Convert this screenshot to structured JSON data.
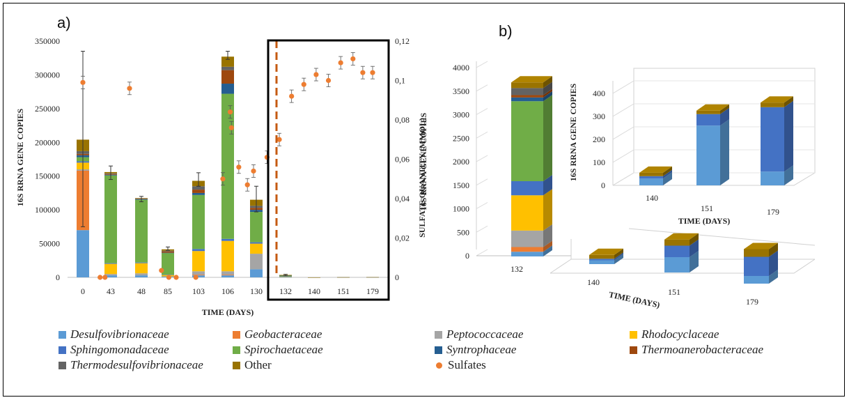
{
  "figure": {
    "panel_a_label": "a)",
    "panel_b_label": "b)"
  },
  "legend": {
    "items": [
      {
        "label": "Desulfovibrionaceae",
        "color": "#5b9bd5",
        "italic": true,
        "marker": "square"
      },
      {
        "label": "Geobacteraceae",
        "color": "#ed7d31",
        "italic": true,
        "marker": "square"
      },
      {
        "label": "Peptococcaceae",
        "color": "#a5a5a5",
        "italic": true,
        "marker": "square"
      },
      {
        "label": "Rhodocyclaceae",
        "color": "#ffc000",
        "italic": true,
        "marker": "square"
      },
      {
        "label": "Sphingomonadaceae",
        "color": "#4472c4",
        "italic": true,
        "marker": "square"
      },
      {
        "label": "Spirochaetaceae",
        "color": "#70ad47",
        "italic": true,
        "marker": "square"
      },
      {
        "label": "Syntrophaceae",
        "color": "#255e91",
        "italic": true,
        "marker": "square"
      },
      {
        "label": "Thermoanerobacteraceae",
        "color": "#9e480e",
        "italic": true,
        "marker": "square"
      },
      {
        "label": "Thermodesulfovibrionaceae",
        "color": "#636363",
        "italic": true,
        "marker": "square"
      },
      {
        "label": "Other",
        "color": "#997300",
        "italic": false,
        "marker": "square"
      },
      {
        "label": "Sulfates",
        "color": "#ed7d31",
        "italic": false,
        "marker": "dot"
      }
    ]
  },
  "chart_data": [
    {
      "panel": "a",
      "type": "bar",
      "stacked": true,
      "xlabel": "TIME (DAYS)",
      "ylabel": "16S RRNA GENE COPIES",
      "y2label": "SULFATE QUANTITY (MMOL)",
      "ylim": [
        0,
        350000
      ],
      "yticks": [
        "0",
        "50000",
        "100000",
        "150000",
        "200000",
        "250000",
        "300000",
        "350000"
      ],
      "y2lim": [
        0,
        0.12
      ],
      "y2ticks": [
        "0",
        "0,02",
        "0,04",
        "0,06",
        "0,08",
        "0,1",
        "0,12"
      ],
      "categories": [
        "0",
        "43",
        "48",
        "85",
        "103",
        "106",
        "130",
        "132",
        "140",
        "151",
        "179"
      ],
      "highlighted_categories": [
        "132",
        "140",
        "151",
        "179"
      ],
      "series": [
        {
          "name": "Desulfovibrionaceae",
          "values": [
            70000,
            3000,
            3000,
            1000,
            3000,
            3000,
            12000,
            300,
            0,
            0,
            0
          ]
        },
        {
          "name": "Geobacteraceae",
          "values": [
            88000,
            0,
            0,
            0,
            1000,
            1000,
            0,
            0,
            0,
            0,
            0
          ]
        },
        {
          "name": "Peptococcaceae",
          "values": [
            2000,
            2000,
            3000,
            500,
            5000,
            5000,
            23000,
            300,
            0,
            0,
            0
          ]
        },
        {
          "name": "Rhodocyclaceae",
          "values": [
            10000,
            15000,
            15000,
            2000,
            30000,
            45000,
            15000,
            600,
            0,
            0,
            0
          ]
        },
        {
          "name": "Sphingomonadaceae",
          "values": [
            2000,
            1000,
            1000,
            500,
            3000,
            3000,
            2000,
            300,
            20,
            250,
            330
          ]
        },
        {
          "name": "Spirochaetaceae",
          "values": [
            6000,
            130000,
            93000,
            32000,
            80000,
            215000,
            45000,
            1500,
            0,
            0,
            0
          ]
        },
        {
          "name": "Syntrophaceae",
          "values": [
            3000,
            1000,
            1000,
            500,
            3000,
            15000,
            3000,
            100,
            0,
            0,
            0
          ]
        },
        {
          "name": "Thermoanerobacteraceae",
          "values": [
            2000,
            1000,
            500,
            2000,
            5000,
            20000,
            3000,
            50,
            0,
            0,
            0
          ]
        },
        {
          "name": "Thermodesulfovibrionaceae",
          "values": [
            4000,
            1000,
            500,
            1000,
            5000,
            5000,
            3000,
            100,
            0,
            0,
            0
          ]
        },
        {
          "name": "Other",
          "values": [
            17000,
            2000,
            500,
            2000,
            8000,
            15000,
            9000,
            350,
            30,
            20,
            20
          ]
        }
      ],
      "error_top": [
        335000,
        165000,
        120000,
        45000,
        155000,
        335000,
        135000,
        4500,
        0,
        0,
        0
      ],
      "error_bottom": [
        75000,
        145000,
        112000,
        40000,
        135000,
        323000,
        97000,
        2500,
        0,
        0,
        0
      ],
      "sulfates": {
        "name": "Sulfates",
        "points": [
          {
            "x": 0.0,
            "y": 0.099
          },
          {
            "x": 0.7,
            "y": 0.0
          },
          {
            "x": 0.9,
            "y": 0.0
          },
          {
            "x": 1.9,
            "y": 0.096
          },
          {
            "x": 3.2,
            "y": 0.0035
          },
          {
            "x": 3.5,
            "y": 0.0
          },
          {
            "x": 3.8,
            "y": 0.0
          },
          {
            "x": 4.6,
            "y": 0.0
          },
          {
            "x": 5.7,
            "y": 0.05
          },
          {
            "x": 6.0,
            "y": 0.084
          },
          {
            "x": 6.05,
            "y": 0.076
          },
          {
            "x": 6.35,
            "y": 0.056
          },
          {
            "x": 6.7,
            "y": 0.047
          },
          {
            "x": 6.95,
            "y": 0.054
          },
          {
            "x": 7.5,
            "y": 0.061
          },
          {
            "x": 8.0,
            "y": 0.07
          },
          {
            "x": 8.5,
            "y": 0.092
          },
          {
            "x": 9.0,
            "y": 0.098
          },
          {
            "x": 9.5,
            "y": 0.103
          },
          {
            "x": 10.0,
            "y": 0.1
          },
          {
            "x": 10.5,
            "y": 0.109
          },
          {
            "x": 11.0,
            "y": 0.111
          },
          {
            "x": 11.4,
            "y": 0.104
          },
          {
            "x": 11.8,
            "y": 0.104
          }
        ]
      }
    },
    {
      "panel": "b-left",
      "type": "bar",
      "stacked": true,
      "three_d": true,
      "ylabel": "16S RRNA GENE COPIES",
      "ylim": [
        0,
        4000
      ],
      "yticks": [
        "0",
        "500",
        "1000",
        "1500",
        "2000",
        "2500",
        "3000",
        "3500",
        "4000"
      ],
      "categories": [
        "132"
      ],
      "series": [
        {
          "name": "Desulfovibrionaceae",
          "values": [
            100
          ]
        },
        {
          "name": "Geobacteraceae",
          "values": [
            100
          ]
        },
        {
          "name": "Peptococcaceae",
          "values": [
            350
          ]
        },
        {
          "name": "Rhodocyclaceae",
          "values": [
            750
          ]
        },
        {
          "name": "Sphingomonadaceae",
          "values": [
            300
          ]
        },
        {
          "name": "Spirochaetaceae",
          "values": [
            1700
          ]
        },
        {
          "name": "Syntrophaceae",
          "values": [
            80
          ]
        },
        {
          "name": "Thermoanerobacteraceae",
          "values": [
            50
          ]
        },
        {
          "name": "Thermodesulfovibrionaceae",
          "values": [
            150
          ]
        },
        {
          "name": "Other",
          "values": [
            120
          ]
        }
      ]
    },
    {
      "panel": "b-right-top",
      "type": "bar",
      "stacked": true,
      "three_d": true,
      "xlabel": "TIME (DAYS)",
      "ylabel": "16S RRNA GENE COPIES",
      "ylim": [
        0,
        400
      ],
      "yticks": [
        "0",
        "100",
        "200",
        "300",
        "400"
      ],
      "categories": [
        "140",
        "151",
        "179"
      ],
      "series": [
        {
          "name": "Desulfovibrionaceae",
          "values": [
            30,
            260,
            60
          ]
        },
        {
          "name": "Sphingomonadaceae",
          "values": [
            10,
            50,
            280
          ]
        },
        {
          "name": "Other",
          "values": [
            15,
            15,
            20
          ]
        }
      ]
    },
    {
      "panel": "b-right-bottom",
      "type": "bar",
      "stacked": true,
      "three_d": true,
      "xlabel": "TIME (DAYS)",
      "categories": [
        "140",
        "151",
        "179"
      ],
      "series": [
        {
          "name": "Desulfovibrionaceae",
          "values": [
            5,
            20,
            10
          ]
        },
        {
          "name": "Sphingomonadaceae",
          "values": [
            2,
            15,
            25
          ]
        },
        {
          "name": "Other",
          "values": [
            5,
            8,
            10
          ]
        }
      ]
    }
  ]
}
